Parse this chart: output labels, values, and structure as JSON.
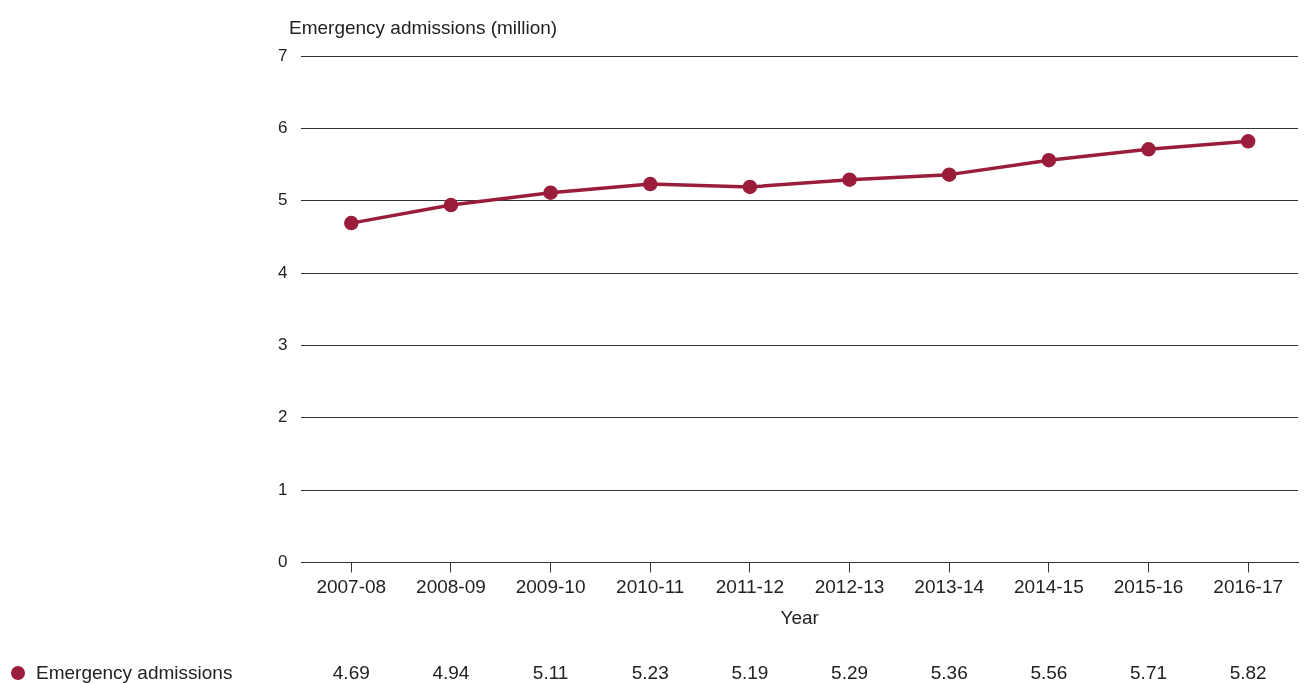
{
  "chart_data": {
    "type": "line",
    "ylabel": "Emergency admissions (million)",
    "xlabel": "Year",
    "categories": [
      "2007-08",
      "2008-09",
      "2009-10",
      "2010-11",
      "2011-12",
      "2012-13",
      "2013-14",
      "2014-15",
      "2015-16",
      "2016-17"
    ],
    "series": [
      {
        "name": "Emergency admissions",
        "color": "#9b1d3c",
        "values": [
          4.69,
          4.94,
          5.11,
          5.23,
          5.19,
          5.29,
          5.36,
          5.56,
          5.71,
          5.82
        ]
      }
    ],
    "ylim": [
      0,
      7
    ],
    "yticks": [
      0,
      1,
      2,
      3,
      4,
      5,
      6,
      7
    ],
    "grid": "y",
    "legend": "bottom left",
    "marker": "circle",
    "line_style": "solid",
    "data_labels": true
  }
}
